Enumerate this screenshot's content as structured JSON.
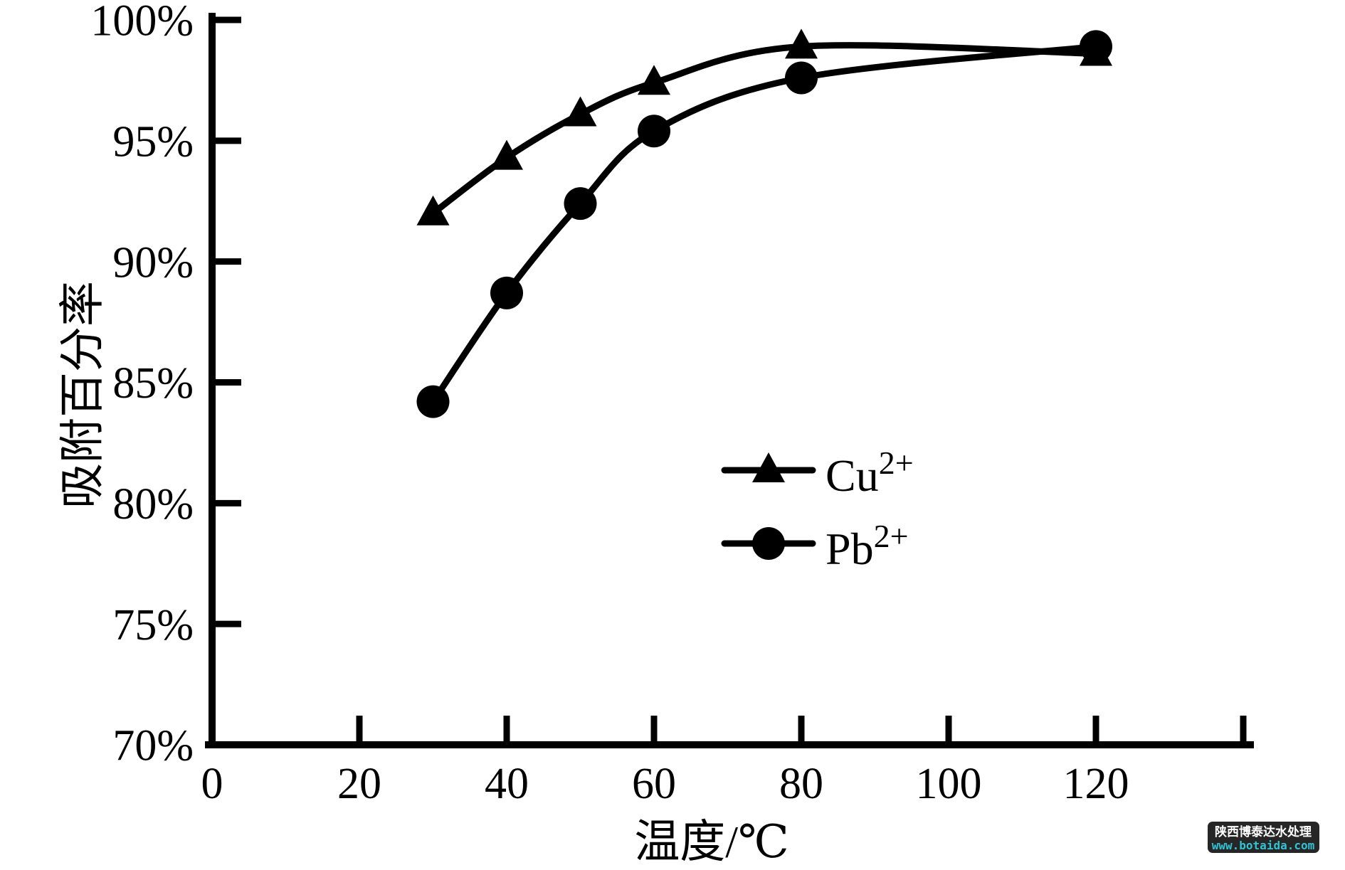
{
  "chart_data": {
    "type": "line",
    "title": "",
    "xlabel": "温度/℃",
    "ylabel": "吸附百分率",
    "xlim": [
      0,
      140
    ],
    "ylim": [
      70,
      100
    ],
    "grid": false,
    "legend_position": "inside-center-right",
    "x_ticks": [
      {
        "v": 0,
        "label": "0",
        "tick": false
      },
      {
        "v": 20,
        "label": "20",
        "tick": true
      },
      {
        "v": 40,
        "label": "40",
        "tick": true
      },
      {
        "v": 60,
        "label": "60",
        "tick": true
      },
      {
        "v": 80,
        "label": "80",
        "tick": true
      },
      {
        "v": 100,
        "label": "100",
        "tick": true
      },
      {
        "v": 120,
        "label": "120",
        "tick": true
      },
      {
        "v": 140,
        "label": "",
        "tick": true
      }
    ],
    "y_ticks": [
      {
        "v": 70,
        "label": "70%",
        "tick": false
      },
      {
        "v": 75,
        "label": "75%",
        "tick": true
      },
      {
        "v": 80,
        "label": "80%",
        "tick": true
      },
      {
        "v": 85,
        "label": "85%",
        "tick": true
      },
      {
        "v": 90,
        "label": "90%",
        "tick": true
      },
      {
        "v": 95,
        "label": "95%",
        "tick": true
      },
      {
        "v": 100,
        "label": "100%",
        "tick": true
      }
    ],
    "series": [
      {
        "name": "Cu2+",
        "legend_base": "Cu",
        "legend_sup": "2+",
        "marker": "triangle",
        "color": "#000000",
        "x": [
          30,
          40,
          50,
          60,
          80,
          120
        ],
        "y": [
          92.0,
          94.3,
          96.1,
          97.4,
          98.9,
          98.6
        ]
      },
      {
        "name": "Pb2+",
        "legend_base": "Pb",
        "legend_sup": "2+",
        "marker": "circle",
        "color": "#000000",
        "x": [
          30,
          40,
          50,
          60,
          80,
          120
        ],
        "y": [
          84.2,
          88.7,
          92.4,
          95.4,
          97.6,
          98.9
        ]
      }
    ]
  },
  "watermark": {
    "line1": "陕西博泰达水处理",
    "line2": "www.botaida.com",
    "bg_color": "#262626",
    "line1_color": "#ffffff",
    "line2_color": "#31c2d4"
  },
  "colors": {
    "foreground": "#000000",
    "background": "#ffffff"
  }
}
